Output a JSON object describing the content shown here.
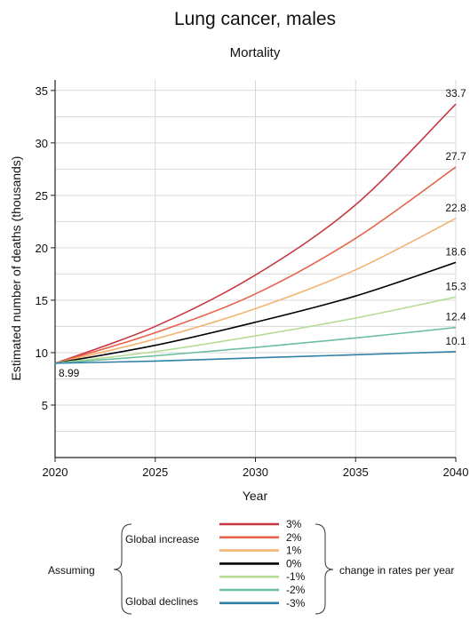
{
  "chart_data": {
    "type": "line",
    "title": "Lung cancer, males",
    "subtitle": "Mortality",
    "xlabel": "Year",
    "ylabel": "Estimated number of deaths (thousands)",
    "xlim": [
      2020,
      2040
    ],
    "ylim": [
      0,
      36
    ],
    "x_ticks": [
      2020,
      2025,
      2030,
      2035,
      2040
    ],
    "y_ticks": [
      5,
      10,
      15,
      20,
      25,
      30,
      35
    ],
    "grid": true,
    "x": [
      2020,
      2025,
      2030,
      2035,
      2040
    ],
    "start_label": "8.99",
    "series": [
      {
        "name": "3%",
        "color": "#c83741",
        "values": [
          8.99,
          12.5,
          17.4,
          24.1,
          33.7
        ],
        "end_label": "33.7"
      },
      {
        "name": "2%",
        "color": "#e8634a",
        "values": [
          8.99,
          11.9,
          15.6,
          20.9,
          27.7
        ],
        "end_label": "27.7"
      },
      {
        "name": "1%",
        "color": "#f3b472",
        "values": [
          8.99,
          11.3,
          14.2,
          17.9,
          22.8
        ],
        "end_label": "22.8"
      },
      {
        "name": "0%",
        "color": "#000000",
        "values": [
          8.99,
          10.7,
          12.9,
          15.4,
          18.6
        ],
        "end_label": "18.6"
      },
      {
        "name": "-1%",
        "color": "#b4dc94",
        "values": [
          8.99,
          10.1,
          11.6,
          13.3,
          15.3
        ],
        "end_label": "15.3"
      },
      {
        "name": "-2%",
        "color": "#6bbf9e",
        "values": [
          8.99,
          9.7,
          10.5,
          11.4,
          12.4
        ],
        "end_label": "12.4"
      },
      {
        "name": "-3%",
        "color": "#2f7fa8",
        "values": [
          8.99,
          9.2,
          9.5,
          9.8,
          10.1
        ],
        "end_label": "10.1"
      }
    ],
    "legend": {
      "assuming": "Assuming",
      "increase": "Global increase",
      "declines": "Global declines",
      "suffix": "change in rates per year"
    }
  }
}
